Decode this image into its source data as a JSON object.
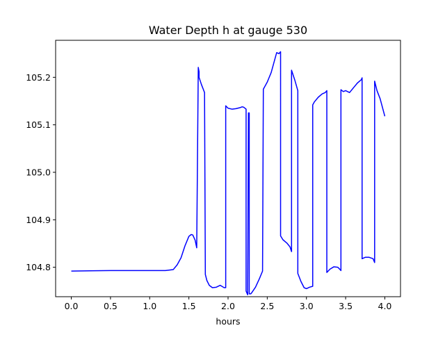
{
  "chart_data": {
    "type": "line",
    "title": "Water Depth h at gauge 530",
    "xlabel": "hours",
    "ylabel": "",
    "xlim": [
      -0.2,
      4.2
    ],
    "ylim": [
      104.738,
      105.278
    ],
    "xticks": [
      0.0,
      0.5,
      1.0,
      1.5,
      2.0,
      2.5,
      3.0,
      3.5,
      4.0
    ],
    "xtick_labels": [
      "0.0",
      "0.5",
      "1.0",
      "1.5",
      "2.0",
      "2.5",
      "3.0",
      "3.5",
      "4.0"
    ],
    "yticks": [
      104.8,
      104.9,
      105.0,
      105.1,
      105.2
    ],
    "ytick_labels": [
      "104.8",
      "104.9",
      "105.0",
      "105.1",
      "105.2"
    ],
    "grid": false,
    "legend": "none",
    "series": [
      {
        "color": "#0000ff",
        "x": [
          0.0,
          0.5,
          1.0,
          1.2,
          1.3,
          1.35,
          1.4,
          1.45,
          1.5,
          1.53,
          1.55,
          1.58,
          1.6,
          1.62,
          1.63,
          1.63,
          1.66,
          1.7,
          1.71,
          1.71,
          1.73,
          1.76,
          1.8,
          1.85,
          1.9,
          1.95,
          1.97,
          1.97,
          2.0,
          2.05,
          2.1,
          2.15,
          2.18,
          2.2,
          2.23,
          2.23,
          2.25,
          2.26,
          2.27,
          2.27,
          2.29,
          2.29,
          2.3,
          2.35,
          2.4,
          2.44,
          2.45,
          2.5,
          2.55,
          2.6,
          2.62,
          2.65,
          2.67,
          2.67,
          2.7,
          2.75,
          2.79,
          2.81,
          2.81,
          2.85,
          2.89,
          2.89,
          2.93,
          2.97,
          3.0,
          3.04,
          3.08,
          3.08,
          3.1,
          3.15,
          3.2,
          3.24,
          3.26,
          3.26,
          3.3,
          3.35,
          3.4,
          3.43,
          3.44,
          3.44,
          3.47,
          3.5,
          3.55,
          3.6,
          3.65,
          3.7,
          3.71,
          3.71,
          3.75,
          3.8,
          3.85,
          3.87,
          3.87,
          3.9,
          3.94,
          4.0
        ],
        "y": [
          104.792,
          104.793,
          104.793,
          104.793,
          104.795,
          104.805,
          104.82,
          104.845,
          104.865,
          104.869,
          104.868,
          104.857,
          104.841,
          105.221,
          105.212,
          105.2,
          105.185,
          105.168,
          104.787,
          104.785,
          104.772,
          104.762,
          104.757,
          104.758,
          104.762,
          104.757,
          104.757,
          105.14,
          105.135,
          105.133,
          105.134,
          105.136,
          105.138,
          105.137,
          105.133,
          104.75,
          104.742,
          105.125,
          105.125,
          104.744,
          104.744,
          104.744,
          104.746,
          104.758,
          104.776,
          104.792,
          105.175,
          105.19,
          105.21,
          105.24,
          105.252,
          105.25,
          105.254,
          104.866,
          104.858,
          104.851,
          104.843,
          104.833,
          105.215,
          105.195,
          105.172,
          104.787,
          104.77,
          104.757,
          104.755,
          104.758,
          104.76,
          105.142,
          105.148,
          105.158,
          105.165,
          105.168,
          105.172,
          104.789,
          104.796,
          104.801,
          104.8,
          104.795,
          104.793,
          105.174,
          105.17,
          105.172,
          105.168,
          105.178,
          105.188,
          105.195,
          105.199,
          104.818,
          104.821,
          104.821,
          104.818,
          104.81,
          105.192,
          105.172,
          105.155,
          105.118
        ]
      }
    ]
  }
}
